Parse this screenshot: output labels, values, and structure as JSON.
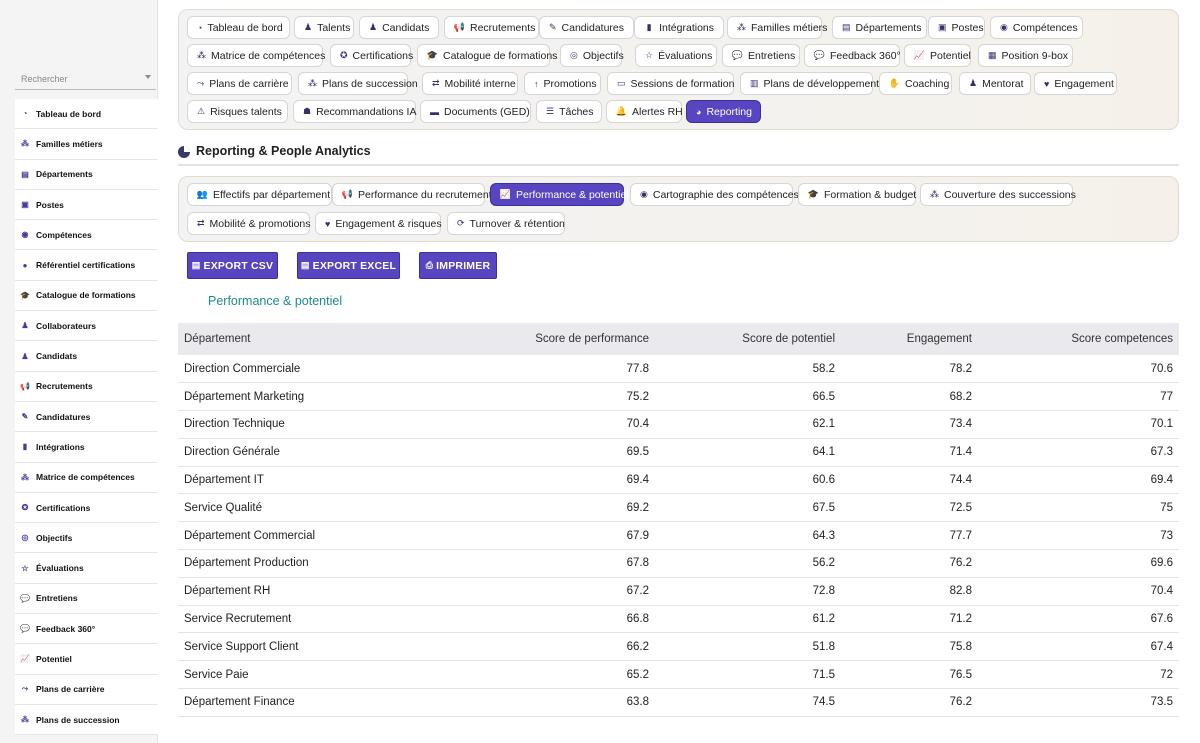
{
  "sidebar": {
    "search_placeholder": "Rechercher",
    "items": [
      {
        "label": "Tableau de bord",
        "icon": "dashboard-icon"
      },
      {
        "label": "Familles métiers",
        "icon": "sitemap-icon"
      },
      {
        "label": "Départements",
        "icon": "building-icon"
      },
      {
        "label": "Postes",
        "icon": "badge-icon"
      },
      {
        "label": "Compétences",
        "icon": "brain-icon"
      },
      {
        "label": "Référentiel certifications",
        "icon": "certificate-icon"
      },
      {
        "label": "Catalogue de formations",
        "icon": "graduation-cap-icon"
      },
      {
        "label": "Collaborateurs",
        "icon": "user-icon"
      },
      {
        "label": "Candidats",
        "icon": "user-plus-icon"
      },
      {
        "label": "Recrutements",
        "icon": "megaphone-icon"
      },
      {
        "label": "Candidatures",
        "icon": "file-signature-icon"
      },
      {
        "label": "Intégrations",
        "icon": "door-open-icon"
      },
      {
        "label": "Matrice de compétences",
        "icon": "sitemap-icon"
      },
      {
        "label": "Certifications",
        "icon": "award-icon"
      },
      {
        "label": "Objectifs",
        "icon": "bullseye-icon"
      },
      {
        "label": "Évaluations",
        "icon": "star-half-icon"
      },
      {
        "label": "Entretiens",
        "icon": "comments-icon"
      },
      {
        "label": "Feedback 360°",
        "icon": "comment-dots-icon"
      },
      {
        "label": "Potentiel",
        "icon": "chart-line-icon"
      },
      {
        "label": "Plans de carrière",
        "icon": "route-icon"
      },
      {
        "label": "Plans de succession",
        "icon": "sitemap-icon"
      }
    ]
  },
  "modules": [
    {
      "label": "Tableau de bord",
      "icon": "dashboard-icon",
      "active": false
    },
    {
      "label": "Talents",
      "icon": "user-icon",
      "active": false
    },
    {
      "label": "Candidats",
      "icon": "user-plus-icon",
      "active": false
    },
    {
      "label": "Recrutements",
      "icon": "megaphone-icon",
      "active": false
    },
    {
      "label": "Candidatures",
      "icon": "file-signature-icon",
      "active": false
    },
    {
      "label": "Intégrations",
      "icon": "door-open-icon",
      "active": false
    },
    {
      "label": "Familles métiers",
      "icon": "sitemap-icon",
      "active": false
    },
    {
      "label": "Départements",
      "icon": "building-icon",
      "active": false
    },
    {
      "label": "Postes",
      "icon": "badge-icon",
      "active": false
    },
    {
      "label": "Compétences",
      "icon": "brain-icon",
      "active": false
    },
    {
      "label": "Matrice de compétences",
      "icon": "sitemap-icon",
      "active": false
    },
    {
      "label": "Certifications",
      "icon": "award-icon",
      "active": false
    },
    {
      "label": "Catalogue de formations",
      "icon": "graduation-cap-icon",
      "active": false
    },
    {
      "label": "Objectifs",
      "icon": "bullseye-icon",
      "active": false
    },
    {
      "label": "Évaluations",
      "icon": "star-half-icon",
      "active": false
    },
    {
      "label": "Entretiens",
      "icon": "comments-icon",
      "active": false
    },
    {
      "label": "Feedback 360°",
      "icon": "comment-dots-icon",
      "active": false
    },
    {
      "label": "Potentiel",
      "icon": "chart-line-icon",
      "active": false
    },
    {
      "label": "Position 9-box",
      "icon": "grid-icon",
      "active": false
    },
    {
      "label": "Plans de carrière",
      "icon": "route-icon",
      "active": false
    },
    {
      "label": "Plans de succession",
      "icon": "sitemap-icon",
      "active": false
    },
    {
      "label": "Mobilité interne",
      "icon": "exchange-icon",
      "active": false
    },
    {
      "label": "Promotions",
      "icon": "arrow-up-icon",
      "active": false
    },
    {
      "label": "Sessions de formation",
      "icon": "chalkboard-icon",
      "active": false
    },
    {
      "label": "Plans de développement",
      "icon": "book-icon",
      "active": false
    },
    {
      "label": "Coaching",
      "icon": "handshake-icon",
      "active": false
    },
    {
      "label": "Mentorat",
      "icon": "user-tie-icon",
      "active": false
    },
    {
      "label": "Engagement",
      "icon": "heart-icon",
      "active": false
    },
    {
      "label": "Risques talents",
      "icon": "warning-icon",
      "active": false
    },
    {
      "label": "Recommandations IA",
      "icon": "robot-icon",
      "active": false
    },
    {
      "label": "Documents (GED)",
      "icon": "folder-icon",
      "active": false
    },
    {
      "label": "Tâches",
      "icon": "list-icon",
      "active": false
    },
    {
      "label": "Alertes RH",
      "icon": "bell-icon",
      "active": false
    },
    {
      "label": "Reporting",
      "icon": "pie-chart-icon",
      "active": true
    }
  ],
  "section": {
    "title": "Reporting & People Analytics",
    "icon": "pie-chart-icon"
  },
  "report_tabs": [
    {
      "label": "Effectifs par département",
      "icon": "users-icon",
      "active": false
    },
    {
      "label": "Performance du recrutement",
      "icon": "megaphone-icon",
      "active": false
    },
    {
      "label": "Performance & potentiel",
      "icon": "chart-line-icon",
      "active": true
    },
    {
      "label": "Cartographie des compétences",
      "icon": "brain-icon",
      "active": false
    },
    {
      "label": "Formation & budget",
      "icon": "graduation-cap-icon",
      "active": false
    },
    {
      "label": "Couverture des successions",
      "icon": "sitemap-icon",
      "active": false
    },
    {
      "label": "Mobilité & promotions",
      "icon": "exchange-icon",
      "active": false
    },
    {
      "label": "Engagement & risques",
      "icon": "heart-icon",
      "active": false
    },
    {
      "label": "Turnover & rétention",
      "icon": "sync-icon",
      "active": false
    }
  ],
  "actions": {
    "export_csv": "EXPORT CSV",
    "export_excel": "EXPORT EXCEL",
    "print": "IMPRIMER"
  },
  "table": {
    "title": "Performance & potentiel",
    "columns": [
      "Département",
      "Score de performance",
      "Score de potentiel",
      "Engagement",
      "Score competences"
    ],
    "rows": [
      [
        "Direction Commerciale",
        "77.8",
        "58.2",
        "78.2",
        "70.6"
      ],
      [
        "Département Marketing",
        "75.2",
        "66.5",
        "68.2",
        "77"
      ],
      [
        "Direction Technique",
        "70.4",
        "62.1",
        "73.4",
        "70.1"
      ],
      [
        "Direction Générale",
        "69.5",
        "64.1",
        "71.4",
        "67.3"
      ],
      [
        "Département IT",
        "69.4",
        "60.6",
        "74.4",
        "69.4"
      ],
      [
        "Service Qualité",
        "69.2",
        "67.5",
        "72.5",
        "75"
      ],
      [
        "Département Commercial",
        "67.9",
        "64.3",
        "77.7",
        "73"
      ],
      [
        "Département Production",
        "67.8",
        "56.2",
        "76.2",
        "69.6"
      ],
      [
        "Département RH",
        "67.2",
        "72.8",
        "82.8",
        "70.4"
      ],
      [
        "Service Recrutement",
        "66.8",
        "61.2",
        "71.2",
        "67.6"
      ],
      [
        "Service Support Client",
        "66.2",
        "51.8",
        "75.8",
        "67.4"
      ],
      [
        "Service Paie",
        "65.2",
        "71.5",
        "76.5",
        "72"
      ],
      [
        "Département Finance",
        "63.8",
        "74.5",
        "76.2",
        "73.5"
      ]
    ]
  }
}
